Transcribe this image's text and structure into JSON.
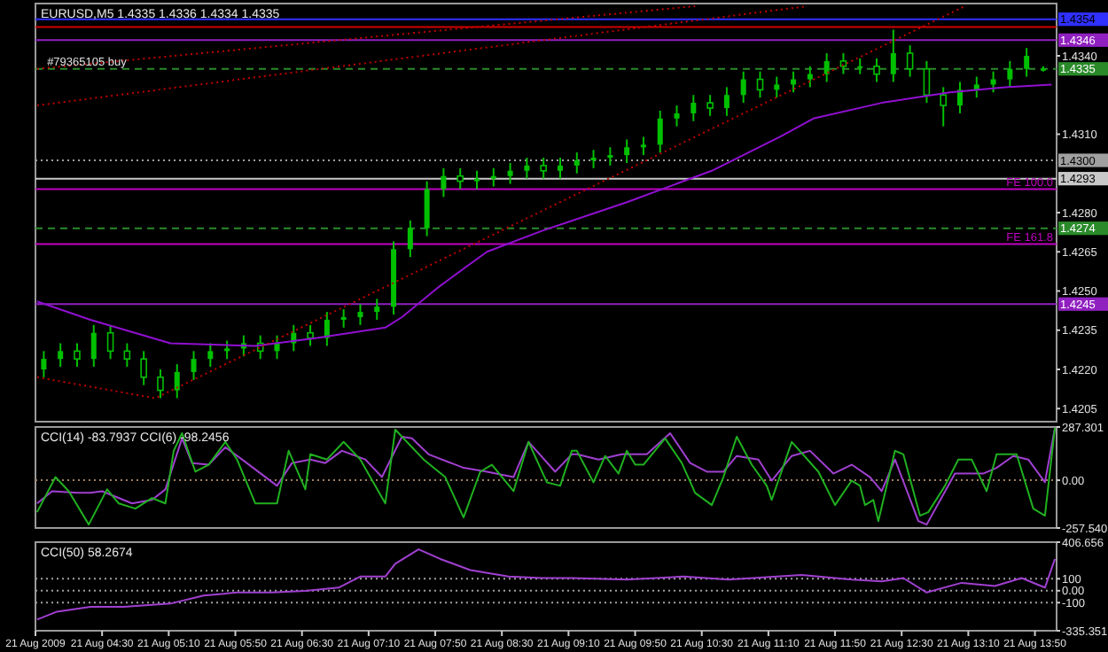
{
  "chart_data": [
    {
      "type": "candlestick",
      "title": "EURUSD,M5  1.4335 1.4336 1.4334 1.4335",
      "color": "#00c000",
      "tick_labels": "y",
      "xlim": [
        "2009-08-21T03:50",
        "2009-08-21T14:03"
      ],
      "ylim": [
        1.42,
        1.436
      ],
      "yticks": [
        {
          "value": 1.4205,
          "label": "1.4205"
        },
        {
          "value": 1.422,
          "label": "1.4220"
        },
        {
          "value": 1.4235,
          "label": "1.4235"
        },
        {
          "value": 1.425,
          "label": "1.4250"
        },
        {
          "value": 1.4265,
          "label": "1.4265"
        },
        {
          "value": 1.428,
          "label": "1.4280"
        },
        {
          "value": 1.431,
          "label": "1.4310"
        },
        {
          "value": 1.434,
          "label": "1.4340"
        }
      ],
      "x": [
        "2009-08-21T03:55",
        "2009-08-21T04:05",
        "2009-08-21T04:15",
        "2009-08-21T04:25",
        "2009-08-21T04:35",
        "2009-08-21T04:45",
        "2009-08-21T04:55",
        "2009-08-21T05:05",
        "2009-08-21T05:15",
        "2009-08-21T05:25",
        "2009-08-21T05:35",
        "2009-08-21T05:45",
        "2009-08-21T05:55",
        "2009-08-21T06:05",
        "2009-08-21T06:15",
        "2009-08-21T06:25",
        "2009-08-21T06:35",
        "2009-08-21T06:45",
        "2009-08-21T06:55",
        "2009-08-21T07:05",
        "2009-08-21T07:15",
        "2009-08-21T07:25",
        "2009-08-21T07:35",
        "2009-08-21T07:45",
        "2009-08-21T07:55",
        "2009-08-21T08:05",
        "2009-08-21T08:15",
        "2009-08-21T08:25",
        "2009-08-21T08:35",
        "2009-08-21T08:45",
        "2009-08-21T08:55",
        "2009-08-21T09:05",
        "2009-08-21T09:15",
        "2009-08-21T09:25",
        "2009-08-21T09:35",
        "2009-08-21T09:45",
        "2009-08-21T09:55",
        "2009-08-21T10:05",
        "2009-08-21T10:15",
        "2009-08-21T10:25",
        "2009-08-21T10:35",
        "2009-08-21T10:45",
        "2009-08-21T10:55",
        "2009-08-21T11:05",
        "2009-08-21T11:15",
        "2009-08-21T11:25",
        "2009-08-21T11:35",
        "2009-08-21T11:45",
        "2009-08-21T11:55",
        "2009-08-21T12:05",
        "2009-08-21T12:15",
        "2009-08-21T12:25",
        "2009-08-21T12:35",
        "2009-08-21T12:45",
        "2009-08-21T12:55",
        "2009-08-21T13:05",
        "2009-08-21T13:15",
        "2009-08-21T13:25",
        "2009-08-21T13:35",
        "2009-08-21T13:45",
        "2009-08-21T13:55"
      ],
      "ohlc": [
        [
          1.422,
          1.4227,
          1.4217,
          1.4224
        ],
        [
          1.4224,
          1.423,
          1.4221,
          1.4227
        ],
        [
          1.4227,
          1.423,
          1.4221,
          1.4224
        ],
        [
          1.4224,
          1.4237,
          1.4221,
          1.4234
        ],
        [
          1.4234,
          1.4237,
          1.4224,
          1.4227
        ],
        [
          1.4227,
          1.423,
          1.4221,
          1.4224
        ],
        [
          1.4224,
          1.4227,
          1.4214,
          1.4217
        ],
        [
          1.4217,
          1.422,
          1.4209,
          1.4212
        ],
        [
          1.4212,
          1.4222,
          1.4209,
          1.4219
        ],
        [
          1.4219,
          1.4227,
          1.4216,
          1.4224
        ],
        [
          1.4224,
          1.423,
          1.4221,
          1.4227
        ],
        [
          1.4227,
          1.4231,
          1.4224,
          1.4228
        ],
        [
          1.4228,
          1.4233,
          1.4225,
          1.423
        ],
        [
          1.423,
          1.4233,
          1.4224,
          1.4227
        ],
        [
          1.4227,
          1.4233,
          1.4224,
          1.423
        ],
        [
          1.423,
          1.4237,
          1.4227,
          1.4234
        ],
        [
          1.4234,
          1.4237,
          1.4229,
          1.4232
        ],
        [
          1.4232,
          1.4242,
          1.4229,
          1.4239
        ],
        [
          1.4239,
          1.4243,
          1.4236,
          1.424
        ],
        [
          1.424,
          1.4245,
          1.4237,
          1.4242
        ],
        [
          1.4242,
          1.4247,
          1.4239,
          1.4244
        ],
        [
          1.4244,
          1.4269,
          1.4241,
          1.4266
        ],
        [
          1.4266,
          1.4277,
          1.4263,
          1.4274
        ],
        [
          1.4274,
          1.4292,
          1.4271,
          1.4289
        ],
        [
          1.4289,
          1.4297,
          1.4286,
          1.4294
        ],
        [
          1.4294,
          1.4297,
          1.4289,
          1.4292
        ],
        [
          1.4292,
          1.4296,
          1.4289,
          1.4293
        ],
        [
          1.4293,
          1.4297,
          1.429,
          1.4294
        ],
        [
          1.4294,
          1.4299,
          1.4291,
          1.4296
        ],
        [
          1.4296,
          1.4301,
          1.4293,
          1.4298
        ],
        [
          1.4298,
          1.4301,
          1.4293,
          1.4296
        ],
        [
          1.4296,
          1.4301,
          1.4293,
          1.4298
        ],
        [
          1.4298,
          1.4303,
          1.4295,
          1.43
        ],
        [
          1.43,
          1.4304,
          1.4297,
          1.4301
        ],
        [
          1.4301,
          1.4305,
          1.4298,
          1.4302
        ],
        [
          1.4302,
          1.4308,
          1.4299,
          1.4305
        ],
        [
          1.4305,
          1.4309,
          1.4302,
          1.4306
        ],
        [
          1.4306,
          1.4319,
          1.4303,
          1.4316
        ],
        [
          1.4316,
          1.4321,
          1.4313,
          1.4318
        ],
        [
          1.4318,
          1.4325,
          1.4315,
          1.4322
        ],
        [
          1.4322,
          1.4325,
          1.4317,
          1.432
        ],
        [
          1.432,
          1.4328,
          1.4317,
          1.4325
        ],
        [
          1.4325,
          1.4334,
          1.4322,
          1.4331
        ],
        [
          1.4331,
          1.4334,
          1.4324,
          1.4327
        ],
        [
          1.4327,
          1.4332,
          1.4324,
          1.4329
        ],
        [
          1.4329,
          1.4334,
          1.4326,
          1.4331
        ],
        [
          1.4331,
          1.4336,
          1.4328,
          1.4333
        ],
        [
          1.4333,
          1.4341,
          1.433,
          1.4338
        ],
        [
          1.4338,
          1.4341,
          1.4333,
          1.4336
        ],
        [
          1.4336,
          1.4339,
          1.4333,
          1.4336
        ],
        [
          1.4336,
          1.4339,
          1.433,
          1.4333
        ],
        [
          1.4333,
          1.435,
          1.433,
          1.4341
        ],
        [
          1.4341,
          1.4344,
          1.4332,
          1.4335
        ],
        [
          1.4335,
          1.4338,
          1.4322,
          1.4325
        ],
        [
          1.4325,
          1.4328,
          1.4313,
          1.4321
        ],
        [
          1.4321,
          1.433,
          1.4318,
          1.4327
        ],
        [
          1.4327,
          1.4332,
          1.4324,
          1.4329
        ],
        [
          1.4329,
          1.4334,
          1.4326,
          1.4331
        ],
        [
          1.4331,
          1.4338,
          1.4328,
          1.4335
        ],
        [
          1.4335,
          1.4343,
          1.4332,
          1.434
        ],
        [
          1.4335,
          1.4336,
          1.4334,
          1.4335
        ]
      ],
      "series": [
        {
          "type": "line",
          "color": "#9010d0",
          "x": [
            "2009-08-21T03:51",
            "2009-08-21T04:23",
            "2009-08-21T05:11",
            "2009-08-21T06:02",
            "2009-08-21T06:39",
            "2009-08-21T07:20",
            "2009-08-21T07:30",
            "2009-08-21T07:53",
            "2009-08-21T08:21",
            "2009-08-21T08:54",
            "2009-08-21T09:45",
            "2009-08-21T10:36",
            "2009-08-21T11:17",
            "2009-08-21T11:37",
            "2009-08-21T12:18",
            "2009-08-21T12:38",
            "2009-08-21T12:59",
            "2009-08-21T13:32",
            "2009-08-21T14:00"
          ],
          "values": [
            1.4246,
            1.4239,
            1.423,
            1.4229,
            1.4232,
            1.4236,
            1.424,
            1.4252,
            1.4265,
            1.4273,
            1.4284,
            1.4296,
            1.4309,
            1.4316,
            1.4322,
            1.4324,
            1.4326,
            1.4328,
            1.4329
          ]
        },
        {
          "type": "line",
          "color": "#c00000",
          "line_style": "dotted",
          "x": [
            "2009-08-21T03:51",
            "2009-08-21T10:26"
          ],
          "values": [
            1.4335,
            1.4359
          ]
        },
        {
          "type": "line",
          "color": "#c00000",
          "line_style": "dotted",
          "x": [
            "2009-08-21T03:51",
            "2009-08-21T11:33"
          ],
          "values": [
            1.4321,
            1.4359
          ]
        },
        {
          "type": "line",
          "color": "#c00000",
          "line_style": "dotted",
          "x": [
            "2009-08-21T03:51",
            "2009-08-21T05:02",
            "2009-08-21T13:08"
          ],
          "values": [
            1.4217,
            1.4209,
            1.4359
          ]
        }
      ],
      "ref_lines": [
        {
          "axis": "y",
          "value": 1.4354,
          "label": "1.4354",
          "color": "#3030ff"
        },
        {
          "axis": "y",
          "value": 1.4351,
          "color": "#d00000"
        },
        {
          "axis": "y",
          "value": 1.4346,
          "label": "1.4346",
          "color": "#9020c0"
        },
        {
          "axis": "y",
          "value": 1.4335,
          "label": "1.4335",
          "color": "#2a8a2a",
          "line_style": "dashed"
        },
        {
          "axis": "y",
          "value": 1.43,
          "label": "1.4300",
          "color": "#a0a0a0",
          "line_style": "dotted"
        },
        {
          "axis": "y",
          "value": 1.4293,
          "label": "1.4293",
          "color": "#c8c8c8"
        },
        {
          "axis": "y",
          "value": 1.4289,
          "label": "FE 100.0",
          "color": "#c000c0"
        },
        {
          "axis": "y",
          "value": 1.4274,
          "label": "1.4274",
          "color": "#2a8a2a",
          "line_style": "dashed"
        },
        {
          "axis": "y",
          "value": 1.4268,
          "label": "FE 161.8",
          "color": "#c000c0"
        },
        {
          "axis": "y",
          "value": 1.4245,
          "label": "1.4245",
          "color": "#9020c0"
        }
      ],
      "annotations": [
        {
          "text": "#79365105 buy",
          "x": "2009-08-21T03:57",
          "y": 1.4335
        }
      ]
    },
    {
      "type": "line",
      "title": "CCI(14) -83.7937  CCI(6) -98.2456",
      "tick_labels": "y",
      "xlim": [
        "2009-08-21T03:50",
        "2009-08-21T14:03"
      ],
      "ylim": [
        -257.54,
        287.301
      ],
      "yticks": [
        {
          "value": 287.301,
          "label": "287.301"
        },
        {
          "value": 0,
          "label": "0.00"
        },
        {
          "value": -257.54,
          "label": "-257.540"
        }
      ],
      "ref_lines": [
        {
          "axis": "y",
          "value": 0,
          "color": "#a08060",
          "line_style": "dotted"
        }
      ],
      "series": [
        {
          "color": "#a040d0",
          "x": [
            "2009-08-21T03:51",
            "2009-08-21T04:00",
            "2009-08-21T04:15",
            "2009-08-21T04:23",
            "2009-08-21T04:30",
            "2009-08-21T04:48",
            "2009-08-21T05:00",
            "2009-08-21T05:08",
            "2009-08-21T05:18",
            "2009-08-21T05:24",
            "2009-08-21T05:34",
            "2009-08-21T05:44",
            "2009-08-21T05:54",
            "2009-08-21T06:15",
            "2009-08-21T06:24",
            "2009-08-21T06:35",
            "2009-08-21T06:44",
            "2009-08-21T06:54",
            "2009-08-21T07:08",
            "2009-08-21T07:18",
            "2009-08-21T07:30",
            "2009-08-21T07:36",
            "2009-08-21T07:46",
            "2009-08-21T08:07",
            "2009-08-21T08:21",
            "2009-08-21T08:37",
            "2009-08-21T08:46",
            "2009-08-21T09:02",
            "2009-08-21T09:12",
            "2009-08-21T09:15",
            "2009-08-21T09:28",
            "2009-08-21T09:42",
            "2009-08-21T09:57",
            "2009-08-21T10:11",
            "2009-08-21T10:23",
            "2009-08-21T10:33",
            "2009-08-21T10:43",
            "2009-08-21T10:51",
            "2009-08-21T11:04",
            "2009-08-21T11:12",
            "2009-08-21T11:24",
            "2009-08-21T11:35",
            "2009-08-21T11:49",
            "2009-08-21T12:00",
            "2009-08-21T12:11",
            "2009-08-21T12:18",
            "2009-08-21T12:26",
            "2009-08-21T12:40",
            "2009-08-21T12:45",
            "2009-08-21T13:02",
            "2009-08-21T13:19",
            "2009-08-21T13:27",
            "2009-08-21T13:37",
            "2009-08-21T13:46",
            "2009-08-21T13:56",
            "2009-08-21T14:02"
          ],
          "values": [
            -125,
            -59,
            -68,
            -68,
            -59,
            -125,
            -106,
            -49,
            226,
            93,
            84,
            178,
            112,
            -30,
            93,
            112,
            93,
            159,
            112,
            17,
            235,
            226,
            140,
            67,
            46,
            17,
            207,
            46,
            140,
            140,
            112,
            140,
            140,
            254,
            93,
            46,
            46,
            131,
            112,
            -2,
            131,
            159,
            36,
            84,
            17,
            -59,
            112,
            -220,
            -239,
            36,
            36,
            67,
            131,
            112,
            -11,
            283
          ]
        },
        {
          "color": "#20b020",
          "x": [
            "2009-08-21T03:51",
            "2009-08-21T04:02",
            "2009-08-21T04:10",
            "2009-08-21T04:22",
            "2009-08-21T04:33",
            "2009-08-21T04:40",
            "2009-08-21T04:50",
            "2009-08-21T05:00",
            "2009-08-21T05:08",
            "2009-08-21T05:13",
            "2009-08-21T05:18",
            "2009-08-21T05:26",
            "2009-08-21T05:34",
            "2009-08-21T05:44",
            "2009-08-21T05:51",
            "2009-08-21T06:02",
            "2009-08-21T06:15",
            "2009-08-21T06:22",
            "2009-08-21T06:32",
            "2009-08-21T06:35",
            "2009-08-21T06:45",
            "2009-08-21T06:55",
            "2009-08-21T07:05",
            "2009-08-21T07:20",
            "2009-08-21T07:26",
            "2009-08-21T07:43",
            "2009-08-21T07:56",
            "2009-08-21T08:07",
            "2009-08-21T08:17",
            "2009-08-21T08:24",
            "2009-08-21T08:37",
            "2009-08-21T08:46",
            "2009-08-21T08:57",
            "2009-08-21T09:05",
            "2009-08-21T09:12",
            "2009-08-21T09:15",
            "2009-08-21T09:25",
            "2009-08-21T09:32",
            "2009-08-21T09:40",
            "2009-08-21T09:45",
            "2009-08-21T09:50",
            "2009-08-21T09:55",
            "2009-08-21T10:08",
            "2009-08-21T10:18",
            "2009-08-21T10:26",
            "2009-08-21T10:36",
            "2009-08-21T10:43",
            "2009-08-21T10:51",
            "2009-08-21T11:00",
            "2009-08-21T11:09",
            "2009-08-21T11:12",
            "2009-08-21T11:24",
            "2009-08-21T11:40",
            "2009-08-21T11:50",
            "2009-08-21T12:00",
            "2009-08-21T12:05",
            "2009-08-21T12:08",
            "2009-08-21T12:13",
            "2009-08-21T12:16",
            "2009-08-21T12:26",
            "2009-08-21T12:31",
            "2009-08-21T12:41",
            "2009-08-21T12:46",
            "2009-08-21T12:56",
            "2009-08-21T13:04",
            "2009-08-21T13:12",
            "2009-08-21T13:21",
            "2009-08-21T13:27",
            "2009-08-21T13:39",
            "2009-08-21T13:49",
            "2009-08-21T13:56",
            "2009-08-21T14:02"
          ],
          "values": [
            -172,
            17,
            -59,
            -239,
            -49,
            -125,
            -153,
            -96,
            -125,
            159,
            254,
            46,
            84,
            207,
            112,
            -125,
            -125,
            159,
            -49,
            140,
            112,
            207,
            112,
            -125,
            273,
            112,
            17,
            -201,
            46,
            84,
            -59,
            207,
            -11,
            -30,
            159,
            159,
            -11,
            131,
            36,
            159,
            84,
            84,
            226,
            93,
            -68,
            -134,
            17,
            235,
            84,
            -30,
            -106,
            207,
            46,
            -134,
            -2,
            -30,
            -134,
            -106,
            -220,
            159,
            140,
            -191,
            -172,
            -30,
            112,
            112,
            -59,
            140,
            140,
            -153,
            -191,
            283
          ]
        }
      ]
    },
    {
      "type": "line",
      "title": "CCI(50) 58.2674",
      "xlim": [
        "2009-08-21T03:50",
        "2009-08-21T14:03"
      ],
      "ylim": [
        -335.351,
        406.656
      ],
      "yticks": [
        {
          "value": 406.656,
          "label": "406.656"
        },
        100,
        {
          "value": 0,
          "label": "0.00"
        },
        -100,
        {
          "value": -335.351,
          "label": "-335.351"
        }
      ],
      "xticks": [
        {
          "value": "2009-08-21T03:50",
          "label": "21 Aug 2009"
        },
        {
          "value": "2009-08-21T04:30",
          "label": "21 Aug 04:30"
        },
        {
          "value": "2009-08-21T05:10",
          "label": "21 Aug 05:10"
        },
        {
          "value": "2009-08-21T05:50",
          "label": "21 Aug 05:50"
        },
        {
          "value": "2009-08-21T06:30",
          "label": "21 Aug 06:30"
        },
        {
          "value": "2009-08-21T07:10",
          "label": "21 Aug 07:10"
        },
        {
          "value": "2009-08-21T07:50",
          "label": "21 Aug 07:50"
        },
        {
          "value": "2009-08-21T08:30",
          "label": "21 Aug 08:30"
        },
        {
          "value": "2009-08-21T09:10",
          "label": "21 Aug 09:10"
        },
        {
          "value": "2009-08-21T09:50",
          "label": "21 Aug 09:50"
        },
        {
          "value": "2009-08-21T10:30",
          "label": "21 Aug 10:30"
        },
        {
          "value": "2009-08-21T11:10",
          "label": "21 Aug 11:10"
        },
        {
          "value": "2009-08-21T11:50",
          "label": "21 Aug 11:50"
        },
        {
          "value": "2009-08-21T12:30",
          "label": "21 Aug 12:30"
        },
        {
          "value": "2009-08-21T13:10",
          "label": "21 Aug 13:10"
        },
        {
          "value": "2009-08-21T13:50",
          "label": "21 Aug 13:50"
        }
      ],
      "ref_lines": [
        {
          "axis": "y",
          "value": 100,
          "color": "#a0a0a0",
          "line_style": "dotted"
        },
        {
          "axis": "y",
          "value": 0,
          "color": "#a0a0a0",
          "line_style": "dotted"
        },
        {
          "axis": "y",
          "value": -100,
          "color": "#a0a0a0",
          "line_style": "dotted"
        }
      ],
      "series": [
        {
          "color": "#a040d0",
          "x": [
            "2009-08-21T03:51",
            "2009-08-21T04:03",
            "2009-08-21T04:23",
            "2009-08-21T04:43",
            "2009-08-21T05:11",
            "2009-08-21T05:31",
            "2009-08-21T05:51",
            "2009-08-21T06:12",
            "2009-08-21T06:32",
            "2009-08-21T06:52",
            "2009-08-21T07:05",
            "2009-08-21T07:20",
            "2009-08-21T07:26",
            "2009-08-21T07:40",
            "2009-08-21T07:53",
            "2009-08-21T08:11",
            "2009-08-21T08:34",
            "2009-08-21T08:54",
            "2009-08-21T09:12",
            "2009-08-21T09:45",
            "2009-08-21T10:19",
            "2009-08-21T10:46",
            "2009-08-21T11:30",
            "2009-08-21T12:00",
            "2009-08-21T12:18",
            "2009-08-21T12:31",
            "2009-08-21T12:45",
            "2009-08-21T13:06",
            "2009-08-21T13:26",
            "2009-08-21T13:42",
            "2009-08-21T13:56",
            "2009-08-21T14:02"
          ],
          "values": [
            -242,
            -175,
            -135,
            -135,
            -108,
            -41,
            -15,
            -15,
            -1,
            26,
            119,
            119,
            226,
            347,
            266,
            173,
            119,
            106,
            106,
            93,
            119,
            93,
            133,
            93,
            79,
            106,
            -15,
            66,
            39,
            106,
            26,
            266
          ]
        }
      ]
    }
  ]
}
